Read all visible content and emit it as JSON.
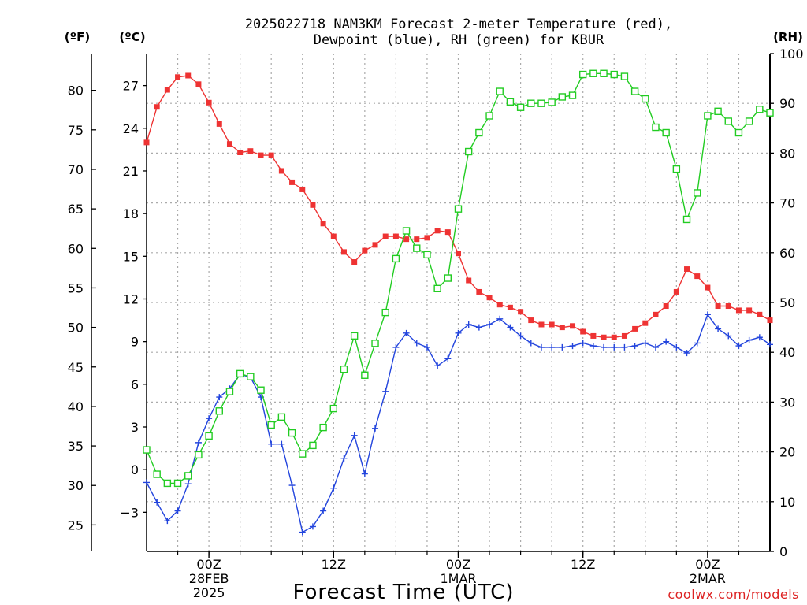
{
  "chart_data": {
    "type": "line",
    "title_line1": "2025022718 NAM3KM Forecast 2-meter Temperature (red),",
    "title_line2": "Dewpoint (blue), RH (green) for KBUR",
    "xlabel": "Forecast Time (UTC)",
    "credit": "coolwx.com/models",
    "left_outer_unit": "(ºF)",
    "left_inner_unit": "(ºC)",
    "right_unit": "(RH)",
    "x_range_hours": [
      0,
      60
    ],
    "x_ticks": [
      {
        "hour": 6,
        "label": "00Z",
        "sub1": "28FEB",
        "sub2": "2025"
      },
      {
        "hour": 18,
        "label": "12Z",
        "sub1": "",
        "sub2": ""
      },
      {
        "hour": 30,
        "label": "00Z",
        "sub1": "1MAR",
        "sub2": ""
      },
      {
        "hour": 42,
        "label": "12Z",
        "sub1": "",
        "sub2": ""
      },
      {
        "hour": 54,
        "label": "00Z",
        "sub1": "2MAR",
        "sub2": ""
      }
    ],
    "celsius_range": [
      -5.75,
      29.25
    ],
    "celsius_ticks": [
      "−3",
      "0",
      "3",
      "6",
      "9",
      "12",
      "15",
      "18",
      "21",
      "24",
      "27"
    ],
    "fahrenheit_ticks": [
      "25",
      "30",
      "35",
      "40",
      "45",
      "50",
      "55",
      "60",
      "65",
      "70",
      "75",
      "80"
    ],
    "rh_range": [
      0,
      100
    ],
    "rh_ticks": [
      "0",
      "10",
      "20",
      "30",
      "40",
      "50",
      "60",
      "70",
      "80",
      "90",
      "100"
    ],
    "grid": true,
    "colors": {
      "temperature": "#ee3333",
      "dewpoint": "#2244dd",
      "rh": "#22cc22",
      "credit": "#dd2222",
      "grid": "#aaaaaa"
    },
    "series": [
      {
        "name": "Temperature (red)",
        "unit": "C",
        "x": [
          0,
          1,
          2,
          3,
          4,
          5,
          6,
          7,
          8,
          9,
          10,
          11,
          12,
          13,
          14,
          15,
          16,
          17,
          18,
          19,
          20,
          21,
          22,
          23,
          24,
          25,
          26,
          27,
          28,
          29,
          30,
          31,
          32,
          33,
          34,
          35,
          36,
          37,
          38,
          39,
          40,
          41,
          42,
          43,
          44,
          45,
          46,
          47,
          48,
          49,
          50,
          51,
          52,
          53,
          54,
          55,
          56,
          57,
          58,
          59,
          60
        ],
        "values": [
          23.0,
          25.5,
          26.7,
          27.6,
          27.7,
          27.1,
          25.8,
          24.3,
          22.9,
          22.3,
          22.4,
          22.1,
          22.1,
          21.0,
          20.2,
          19.7,
          18.6,
          17.3,
          16.4,
          15.3,
          14.6,
          15.4,
          15.8,
          16.4,
          16.4,
          16.2,
          16.2,
          16.3,
          16.8,
          16.7,
          15.2,
          13.3,
          12.5,
          12.1,
          11.6,
          11.4,
          11.1,
          10.5,
          10.2,
          10.2,
          10.0,
          10.1,
          9.7,
          9.4,
          9.3,
          9.3,
          9.4,
          9.9,
          10.3,
          10.9,
          11.5,
          12.5,
          14.1,
          13.6,
          12.8,
          11.5,
          11.5,
          11.2,
          11.2,
          10.9,
          10.5
        ]
      },
      {
        "name": "Dewpoint (blue)",
        "unit": "C",
        "x": [
          0,
          1,
          2,
          3,
          4,
          5,
          6,
          7,
          8,
          9,
          10,
          11,
          12,
          13,
          14,
          15,
          16,
          17,
          18,
          19,
          20,
          21,
          22,
          23,
          24,
          25,
          26,
          27,
          28,
          29,
          30,
          31,
          32,
          33,
          34,
          35,
          36,
          37,
          38,
          39,
          40,
          41,
          42,
          43,
          44,
          45,
          46,
          47,
          48,
          49,
          50,
          51,
          52,
          53,
          54,
          55,
          56,
          57,
          58,
          59,
          60
        ],
        "values": [
          -0.9,
          -2.3,
          -3.6,
          -2.9,
          -1.0,
          1.9,
          3.6,
          5.1,
          5.7,
          6.7,
          6.5,
          5.1,
          1.8,
          1.8,
          -1.1,
          -4.4,
          -4.0,
          -2.9,
          -1.3,
          0.8,
          2.4,
          -0.3,
          2.9,
          5.5,
          8.6,
          9.6,
          8.9,
          8.6,
          7.3,
          7.8,
          9.6,
          10.2,
          10.0,
          10.2,
          10.6,
          10.0,
          9.4,
          8.9,
          8.6,
          8.6,
          8.6,
          8.7,
          8.9,
          8.7,
          8.6,
          8.6,
          8.6,
          8.7,
          8.9,
          8.6,
          9.0,
          8.6,
          8.2,
          8.9,
          10.9,
          9.9,
          9.4,
          8.7,
          9.1,
          9.3,
          8.8
        ]
      },
      {
        "name": "RH (green)",
        "unit": "%",
        "x": [
          0,
          1,
          2,
          3,
          4,
          5,
          6,
          7,
          8,
          9,
          10,
          11,
          12,
          13,
          14,
          15,
          16,
          17,
          18,
          19,
          20,
          21,
          22,
          23,
          24,
          25,
          26,
          27,
          28,
          29,
          30,
          31,
          32,
          33,
          34,
          35,
          36,
          37,
          38,
          39,
          40,
          41,
          42,
          43,
          44,
          45,
          46,
          47,
          48,
          49,
          50,
          51,
          52,
          53,
          54,
          55,
          56,
          57,
          58,
          59,
          60
        ],
        "values": [
          20.4,
          15.5,
          13.7,
          13.7,
          15.2,
          19.4,
          23.2,
          28.2,
          32.1,
          35.7,
          35.1,
          32.4,
          25.4,
          27.0,
          23.8,
          19.6,
          21.3,
          24.9,
          28.7,
          36.6,
          43.3,
          35.4,
          41.8,
          48.0,
          58.8,
          64.4,
          60.9,
          59.6,
          52.8,
          54.9,
          68.8,
          80.3,
          84.1,
          87.5,
          92.4,
          90.3,
          89.2,
          90.0,
          90.0,
          90.2,
          91.3,
          91.6,
          95.8,
          96.0,
          96.0,
          95.8,
          95.4,
          92.4,
          90.9,
          85.2,
          84.1,
          76.8,
          66.7,
          72.0,
          87.5,
          88.4,
          86.4,
          84.1,
          86.4,
          88.8,
          88.1
        ]
      }
    ]
  }
}
